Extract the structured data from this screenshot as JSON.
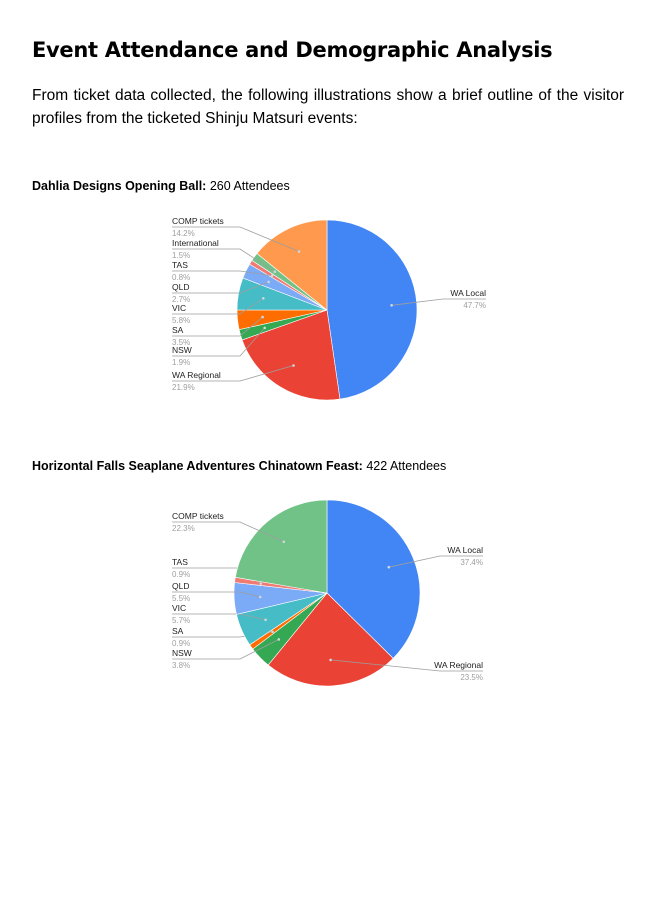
{
  "page": {
    "title": "Event Attendance and Demographic Analysis",
    "intro": "From ticket data collected, the following illustrations show a brief outline of the visitor profiles from the ticketed Shinju Matsuri events:"
  },
  "captions": [
    {
      "bold": "Dahlia Designs Opening Ball:",
      "rest": " 260 Attendees"
    },
    {
      "bold": "Horizontal Falls Seaplane Adventures Chinatown Feast:",
      "rest": " 422 Attendees"
    }
  ],
  "chart_data": [
    {
      "type": "pie",
      "title": "Dahlia Designs Opening Ball: 260 Attendees",
      "slices": [
        {
          "label": "WA Local",
          "value": 47.7,
          "value_label": "47.7%",
          "color": "#4285f4"
        },
        {
          "label": "WA Regional",
          "value": 21.9,
          "value_label": "21.9%",
          "color": "#ea4335"
        },
        {
          "label": "NSW",
          "value": 1.9,
          "value_label": "1.9%",
          "color": "#34a853"
        },
        {
          "label": "SA",
          "value": 3.5,
          "value_label": "3.5%",
          "color": "#ff6d01"
        },
        {
          "label": "VIC",
          "value": 5.8,
          "value_label": "5.8%",
          "color": "#46bdc6"
        },
        {
          "label": "QLD",
          "value": 2.7,
          "value_label": "2.7%",
          "color": "#7baaf7"
        },
        {
          "label": "TAS",
          "value": 0.8,
          "value_label": "0.8%",
          "color": "#f07b72"
        },
        {
          "label": "International",
          "value": 1.5,
          "value_label": "1.5%",
          "color": "#71c287"
        },
        {
          "label": "COMP tickets",
          "value": 14.2,
          "value_label": "14.2%",
          "color": "#ff994d"
        }
      ]
    },
    {
      "type": "pie",
      "title": "Horizontal Falls Seaplane Adventures Chinatown Feast: 422 Attendees",
      "slices": [
        {
          "label": "WA Local",
          "value": 37.4,
          "value_label": "37.4%",
          "color": "#4285f4"
        },
        {
          "label": "WA Regional",
          "value": 23.5,
          "value_label": "23.5%",
          "color": "#ea4335"
        },
        {
          "label": "NSW",
          "value": 3.8,
          "value_label": "3.8%",
          "color": "#34a853"
        },
        {
          "label": "SA",
          "value": 0.9,
          "value_label": "0.9%",
          "color": "#ff6d01"
        },
        {
          "label": "VIC",
          "value": 5.7,
          "value_label": "5.7%",
          "color": "#46bdc6"
        },
        {
          "label": "QLD",
          "value": 5.5,
          "value_label": "5.5%",
          "color": "#7baaf7"
        },
        {
          "label": "TAS",
          "value": 0.9,
          "value_label": "0.9%",
          "color": "#f07b72"
        },
        {
          "label": "COMP tickets",
          "value": 22.3,
          "value_label": "22.3%",
          "color": "#71c287"
        }
      ]
    }
  ]
}
